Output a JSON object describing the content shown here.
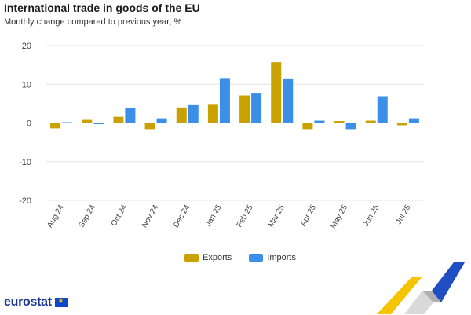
{
  "header": {
    "title": "International trade in goods of the EU",
    "subtitle": "Monthly change compared to previous year, %"
  },
  "legend": {
    "exports_label": "Exports",
    "imports_label": "Imports"
  },
  "brand": {
    "logo_text": "eurostat",
    "flag_icon": "eu-flag-icon",
    "decoration_icon": "chevron-ribbon-icon"
  },
  "colors": {
    "exports": "#c9a100",
    "imports": "#3b8fe8",
    "grid": "#e6e6e6"
  },
  "chart_data": {
    "type": "bar",
    "categories": [
      "Aug 24",
      "Sep 24",
      "Oct 24",
      "Nov 24",
      "Dec 24",
      "Jan 25",
      "Feb 25",
      "Mar 25",
      "Apr 25",
      "May 25",
      "Jun 25",
      "Jul 25"
    ],
    "series": [
      {
        "name": "Exports",
        "values": [
          -1.4,
          0.8,
          1.6,
          -1.6,
          4.0,
          4.7,
          7.1,
          15.7,
          -1.6,
          0.5,
          0.6,
          -0.6
        ]
      },
      {
        "name": "Imports",
        "values": [
          0.2,
          -0.3,
          3.9,
          1.2,
          4.6,
          11.6,
          7.6,
          11.5,
          0.6,
          -1.6,
          6.9,
          1.2
        ]
      }
    ],
    "title": "International trade in goods of the EU",
    "subtitle": "Monthly change compared to previous year, %",
    "xlabel": "",
    "ylabel": "",
    "ylim": [
      -20,
      20
    ],
    "yticks": [
      -20,
      -10,
      0,
      10,
      20
    ],
    "grid": true,
    "legend_position": "bottom-center"
  }
}
